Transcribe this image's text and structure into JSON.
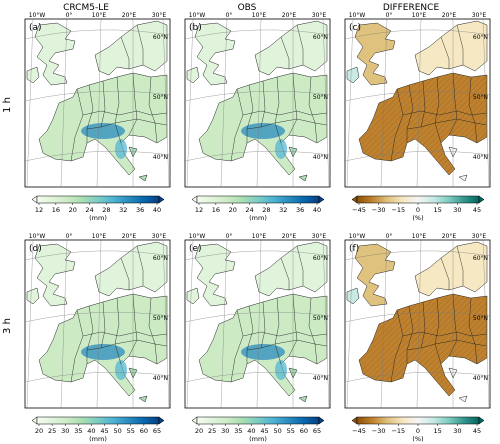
{
  "columns": [
    "CRCM5-LE",
    "OBS",
    "DIFFERENCE"
  ],
  "rows": [
    "1 h",
    "3 h"
  ],
  "panels": [
    {
      "label": "(a)",
      "kind": "abs",
      "row": 0,
      "col": 0
    },
    {
      "label": "(b)",
      "kind": "abs",
      "row": 0,
      "col": 1
    },
    {
      "label": "(c)",
      "kind": "diff",
      "row": 0,
      "col": 2
    },
    {
      "label": "(d)",
      "kind": "abs",
      "row": 1,
      "col": 0
    },
    {
      "label": "(e)",
      "kind": "abs",
      "row": 1,
      "col": 1
    },
    {
      "label": "(f)",
      "kind": "diff",
      "row": 1,
      "col": 2
    }
  ],
  "lon_labels": [
    "10°W",
    "0°",
    "10°E",
    "20°E",
    "30°E"
  ],
  "lat_labels": [
    "60°N",
    "50°N",
    "40°N"
  ],
  "colorbars": [
    {
      "id": "cb-1h-abs",
      "row": 0,
      "cols": [
        0,
        1
      ],
      "ticks": [
        "12",
        "16",
        "20",
        "24",
        "28",
        "32",
        "36",
        "40"
      ],
      "unit": "(mm)",
      "palette": "gnbu"
    },
    {
      "id": "cb-1h-diff",
      "row": 0,
      "cols": [
        2
      ],
      "ticks": [
        "−45",
        "−30",
        "−15",
        "0",
        "15",
        "30",
        "45"
      ],
      "unit": "(%)",
      "palette": "brbg"
    },
    {
      "id": "cb-3h-abs",
      "row": 1,
      "cols": [
        0,
        1
      ],
      "ticks": [
        "20",
        "25",
        "30",
        "35",
        "40",
        "45",
        "50",
        "55",
        "60",
        "65"
      ],
      "unit": "(mm)",
      "palette": "gnbu"
    },
    {
      "id": "cb-3h-diff",
      "row": 1,
      "cols": [
        2
      ],
      "ticks": [
        "−45",
        "−30",
        "−15",
        "0",
        "15",
        "30",
        "45"
      ],
      "unit": "(%)",
      "palette": "brbg"
    }
  ],
  "colors": {
    "gnbu": [
      "#f7fcf0",
      "#e0f3db",
      "#ccebc5",
      "#a8ddb5",
      "#7bccc4",
      "#4eb3d3",
      "#2b8cbe",
      "#0868ac",
      "#084081"
    ],
    "brbg": [
      "#8c510a",
      "#bf812d",
      "#dfc27d",
      "#f6e8c3",
      "#f5f5f5",
      "#c7eae5",
      "#80cdc1",
      "#35978f",
      "#01665e"
    ]
  }
}
